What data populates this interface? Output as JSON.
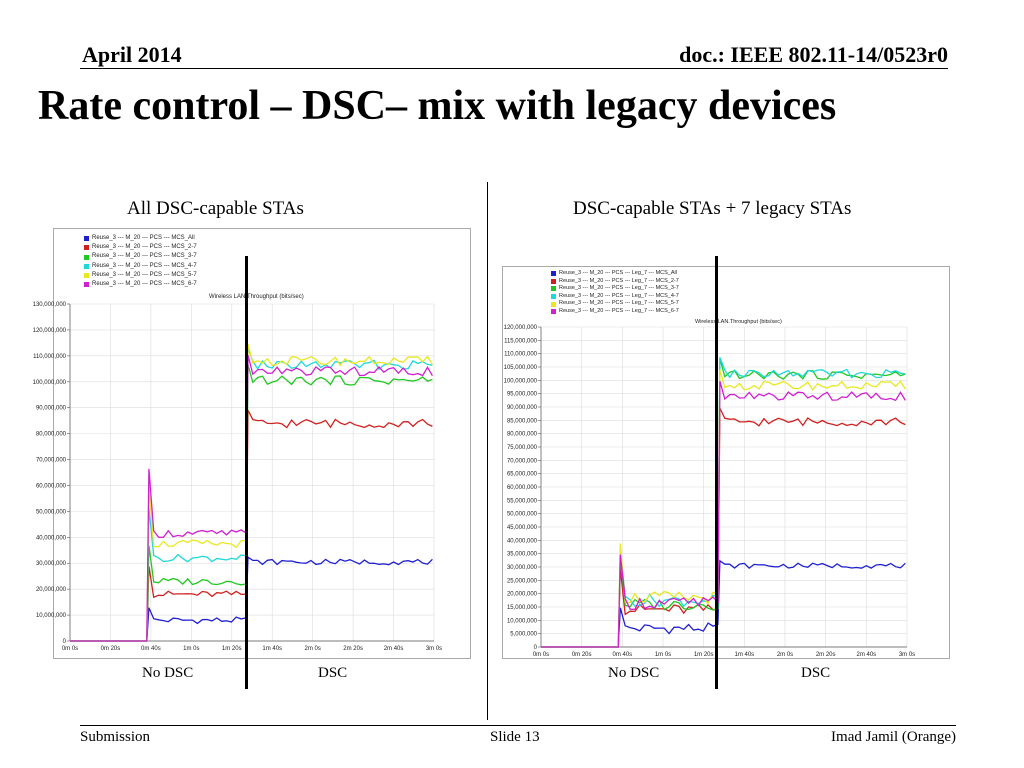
{
  "header": {
    "date": "April 2014",
    "doc_id": "doc.: IEEE 802.11-14/0523r0"
  },
  "slide_title": "Rate control – DSC– mix with legacy devices",
  "left": {
    "subtitle": "All DSC-capable STAs",
    "caption_left": "No DSC",
    "caption_right": "DSC"
  },
  "right": {
    "subtitle": "DSC-capable STAs + 7 legacy STAs",
    "caption_left": "No DSC",
    "caption_right": "DSC"
  },
  "footer": {
    "left": "Submission",
    "center": "Slide 13",
    "right": "Imad Jamil (Orange)"
  },
  "chart_data": [
    {
      "type": "line",
      "title": "Wireless LAN.Throughput (bits/sec)",
      "x": [
        "0m 0s",
        "0m 20s",
        "0m 40s",
        "1m 0s",
        "1m 20s",
        "1m 40s",
        "2m 0s",
        "2m 20s",
        "2m 40s",
        "3m 0s"
      ],
      "ylim": [
        0,
        130000000
      ],
      "yticks": [
        "0",
        "10,000,000",
        "20,000,000",
        "30,000,000",
        "40,000,000",
        "50,000,000",
        "60,000,000",
        "70,000,000",
        "80,000,000",
        "90,000,000",
        "100,000,000",
        "110,000,000",
        "120,000,000",
        "130,000,000"
      ],
      "grid": true,
      "legend_position": "top-left",
      "series": [
        {
          "name": "Reuse_3 --- M_20 --- PCS --- MCS_All",
          "color": "#1f1fd0",
          "nodsc": 8000000,
          "dsc": 30500000
        },
        {
          "name": "Reuse_3 --- M_20 --- PCS --- MCS_2-7",
          "color": "#d02020",
          "nodsc": 18000000,
          "dsc": 84000000
        },
        {
          "name": "Reuse_3 --- M_20 --- PCS --- MCS_3-7",
          "color": "#20c820",
          "nodsc": 23000000,
          "dsc": 100500000
        },
        {
          "name": "Reuse_3 --- M_20 --- PCS --- MCS_4-7",
          "color": "#20d8d8",
          "nodsc": 32000000,
          "dsc": 106500000
        },
        {
          "name": "Reuse_3 --- M_20 --- PCS --- MCS_5-7",
          "color": "#e8e820",
          "nodsc": 37500000,
          "dsc": 108000000
        },
        {
          "name": "Reuse_3 --- M_20 --- PCS --- MCS_6-7",
          "color": "#d020d0",
          "nodsc": 41500000,
          "dsc": 104000000
        }
      ]
    },
    {
      "type": "line",
      "title": "Wireless LAN.Throughput (bits/sec)",
      "x": [
        "0m 0s",
        "0m 20s",
        "0m 40s",
        "1m 0s",
        "1m 20s",
        "1m 40s",
        "2m 0s",
        "2m 20s",
        "2m 40s",
        "3m 0s"
      ],
      "ylim": [
        0,
        120000000
      ],
      "yticks": [
        "0",
        "5,000,000",
        "10,000,000",
        "15,000,000",
        "20,000,000",
        "25,000,000",
        "30,000,000",
        "35,000,000",
        "40,000,000",
        "45,000,000",
        "50,000,000",
        "55,000,000",
        "60,000,000",
        "65,000,000",
        "70,000,000",
        "75,000,000",
        "80,000,000",
        "85,000,000",
        "90,000,000",
        "95,000,000",
        "100,000,000",
        "105,000,000",
        "110,000,000",
        "115,000,000",
        "120,000,000"
      ],
      "grid": true,
      "legend_position": "top-left",
      "series": [
        {
          "name": "Reuse_3 --- M_20 --- PCS --- Leg_7 --- MCS_All",
          "color": "#1f1fd0",
          "nodsc": 7000000,
          "dsc": 30500000
        },
        {
          "name": "Reuse_3 --- M_20 --- PCS --- Leg_7 --- MCS_2-7",
          "color": "#d02020",
          "nodsc": 14000000,
          "dsc": 84500000
        },
        {
          "name": "Reuse_3 --- M_20 --- PCS --- Leg_7 --- MCS_3-7",
          "color": "#20c820",
          "nodsc": 16000000,
          "dsc": 102000000
        },
        {
          "name": "Reuse_3 --- M_20 --- PCS --- Leg_7 --- MCS_4-7",
          "color": "#20d8d8",
          "nodsc": 17500000,
          "dsc": 102500000
        },
        {
          "name": "Reuse_3 --- M_20 --- PCS --- Leg_7 --- MCS_5-7",
          "color": "#e8e820",
          "nodsc": 18500000,
          "dsc": 98000000
        },
        {
          "name": "Reuse_3 --- M_20 --- PCS --- Leg_7 --- MCS_6-7",
          "color": "#d020d0",
          "nodsc": 16500000,
          "dsc": 94000000
        }
      ]
    }
  ]
}
